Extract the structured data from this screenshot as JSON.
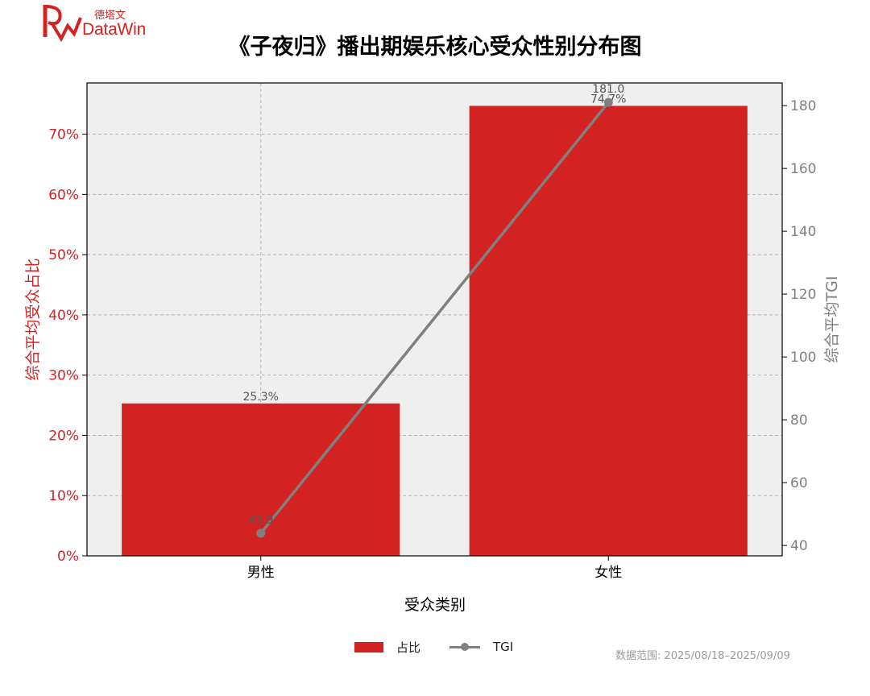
{
  "logo": {
    "text_cn": "德塔文",
    "text_en": "DataWin"
  },
  "title": "《子夜归》播出期娱乐核心受众性别分布图",
  "footnote": "数据范围: 2025/08/18–2025/09/09",
  "legend": {
    "bar_label": "占比",
    "line_label": "TGI"
  },
  "colors": {
    "bar": "#d32222",
    "line": "#808080",
    "plot_bg": "#efefef",
    "left_axis": "#d32222",
    "right_axis": "#808080"
  },
  "chart_data": {
    "type": "bar",
    "categories": [
      "男性",
      "女性"
    ],
    "xlabel": "受众类别",
    "series": [
      {
        "name": "占比",
        "type": "bar",
        "axis": "left",
        "values": [
          25.3,
          74.7
        ],
        "labels": [
          "25.3%",
          "74.7%"
        ]
      },
      {
        "name": "TGI",
        "type": "line",
        "axis": "right",
        "values": [
          43.9,
          181.0
        ],
        "labels": [
          "43.9",
          "181.0"
        ]
      }
    ],
    "ylabel_left": "综合平均受众占比",
    "ylabel_right": "综合平均TGI",
    "ylim_left": [
      0,
      78.5
    ],
    "ylim_right": [
      36.7,
      187.2
    ],
    "yticks_left": [
      0,
      10,
      20,
      30,
      40,
      50,
      60,
      70
    ],
    "ytick_labels_left": [
      "0%",
      "10%",
      "20%",
      "30%",
      "40%",
      "50%",
      "60%",
      "70%"
    ],
    "yticks_right": [
      40,
      60,
      80,
      100,
      120,
      140,
      160,
      180
    ],
    "ytick_labels_right": [
      "40",
      "60",
      "80",
      "100",
      "120",
      "140",
      "160",
      "180"
    ],
    "grid": true,
    "legend_position": "bottom-center"
  }
}
